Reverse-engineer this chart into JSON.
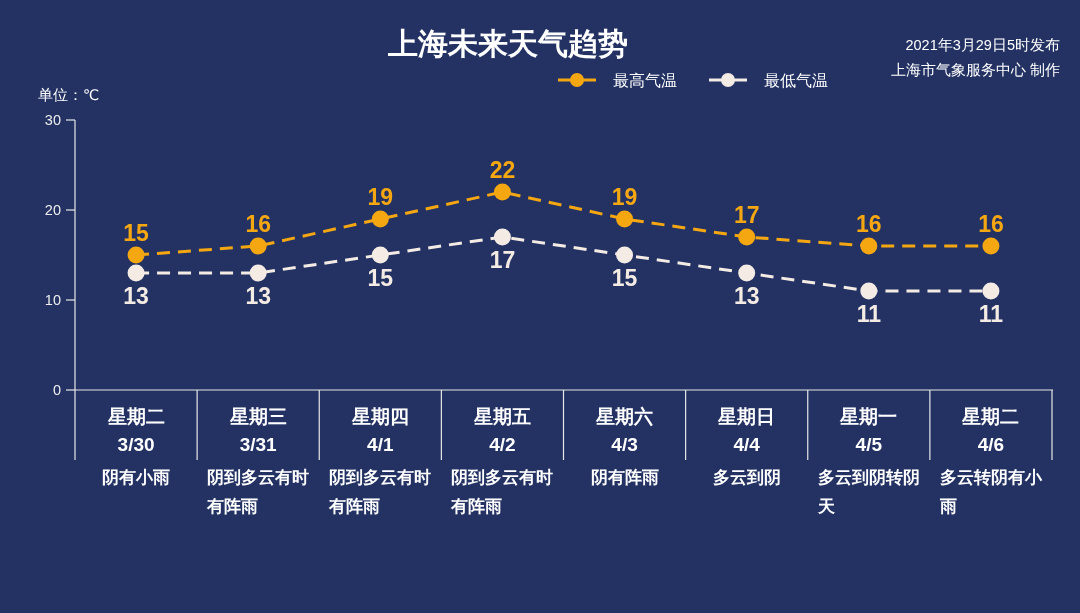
{
  "chart_data": {
    "type": "line",
    "title": "上海未来天气趋势",
    "ylabel": "单位：℃",
    "annotations": [
      "2021年3月29日5时发布",
      "上海市气象服务中心 制作"
    ],
    "categories": [
      "星期二\n3/30\n阴有小雨",
      "星期三\n3/31\n阴到多云有时有阵雨",
      "星期四\n4/1\n阴到多云有时有阵雨",
      "星期五\n4/2\n阴到多云有时有阵雨",
      "星期六\n4/3\n阴有阵雨",
      "星期日\n4/4\n多云到阴",
      "星期一\n4/5\n多云到阴转阴天",
      "星期二\n4/6\n多云转阴有小雨"
    ],
    "series": [
      {
        "name": "最高气温",
        "color": "#f5a712",
        "values": [
          15,
          16,
          19,
          22,
          19,
          17,
          16,
          16
        ]
      },
      {
        "name": "最低气温",
        "color": "#f4ece4",
        "values": [
          13,
          13,
          15,
          17,
          15,
          13,
          11,
          11
        ]
      }
    ],
    "ylim": [
      0,
      30
    ],
    "yticks": [
      0,
      10,
      20,
      30
    ],
    "data_labels": true,
    "legend": "top right",
    "marker": "circle",
    "line_style": "dashed"
  }
}
